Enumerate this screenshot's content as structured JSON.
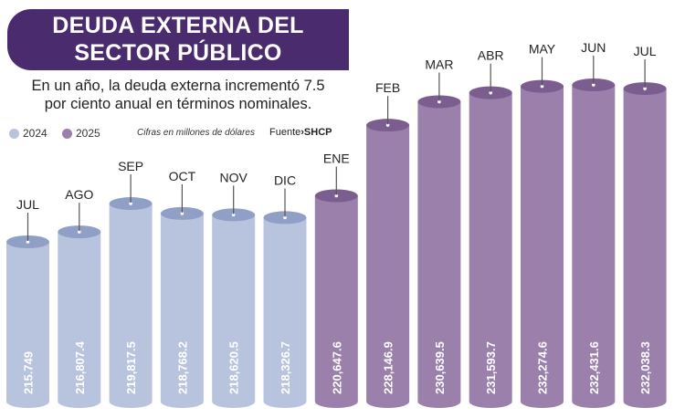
{
  "title_line1": "DEUDA EXTERNA DEL",
  "title_line2": "SECTOR PÚBLICO",
  "subtitle_line1": "En un año, la deuda externa incrementó 7.5",
  "subtitle_line2": "por ciento anual en términos nominales.",
  "note": "Cifras en millones de dólares",
  "source_label": "Fuente",
  "source_arrow": "›",
  "source_name": "SHCP",
  "colors": {
    "2024": "#b8c3de",
    "2024_top": "#8f9fc6",
    "2025": "#9b80ab",
    "2025_top": "#7b5d8f",
    "title_bg": "#4a2c6e"
  },
  "chart_data": {
    "type": "bar",
    "categories": [
      "JUL",
      "AGO",
      "SEP",
      "OCT",
      "NOV",
      "DIC",
      "ENE",
      "FEB",
      "MAR",
      "ABR",
      "MAY",
      "JUN",
      "JUL"
    ],
    "values": [
      215749,
      216807.4,
      219817.5,
      218768.2,
      218620.5,
      218326.7,
      220647.6,
      228146.9,
      230639.5,
      231593.7,
      232274.6,
      232431.6,
      232038.3
    ],
    "value_labels": [
      "215.749",
      "216,807.4",
      "219,817.5",
      "218,768.2",
      "218,620.5",
      "218,326.7",
      "220,647.6",
      "228,146.9",
      "230,639.5",
      "231,593.7",
      "232,274.6",
      "232,431.6",
      "232,038.3"
    ],
    "series_year": [
      "2024",
      "2024",
      "2024",
      "2024",
      "2024",
      "2024",
      "2025",
      "2025",
      "2025",
      "2025",
      "2025",
      "2025",
      "2025"
    ],
    "legend": [
      "2024",
      "2025"
    ],
    "legend_placement": "top-left",
    "grid": false
  }
}
